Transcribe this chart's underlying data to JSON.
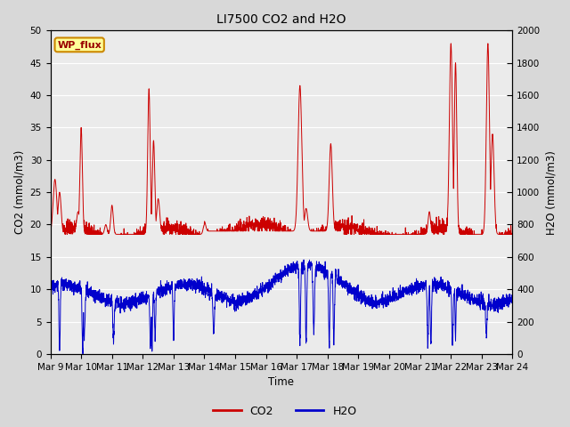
{
  "title": "LI7500 CO2 and H2O",
  "xlabel": "Time",
  "ylabel_left": "CO2 (mmol/m3)",
  "ylabel_right": "H2O (mmol/m3)",
  "ylim_left": [
    0,
    50
  ],
  "ylim_right": [
    0,
    2000
  ],
  "yticks_left": [
    0,
    5,
    10,
    15,
    20,
    25,
    30,
    35,
    40,
    45,
    50
  ],
  "yticks_right": [
    0,
    200,
    400,
    600,
    800,
    1000,
    1200,
    1400,
    1600,
    1800,
    2000
  ],
  "xtick_labels": [
    "Mar 9",
    "Mar 10",
    "Mar 11",
    "Mar 12",
    "Mar 13",
    "Mar 14",
    "Mar 15",
    "Mar 16",
    "Mar 17",
    "Mar 18",
    "Mar 19",
    "Mar 20",
    "Mar 21",
    "Mar 22",
    "Mar 23",
    "Mar 24"
  ],
  "co2_color": "#cc0000",
  "h2o_color": "#0000cc",
  "bg_color": "#d8d8d8",
  "plot_bg": "#ebebeb",
  "label_box_color": "#ffff99",
  "label_box_edge": "#cc8800",
  "label_text": "WP_flux",
  "n_points": 3000,
  "seed": 42
}
